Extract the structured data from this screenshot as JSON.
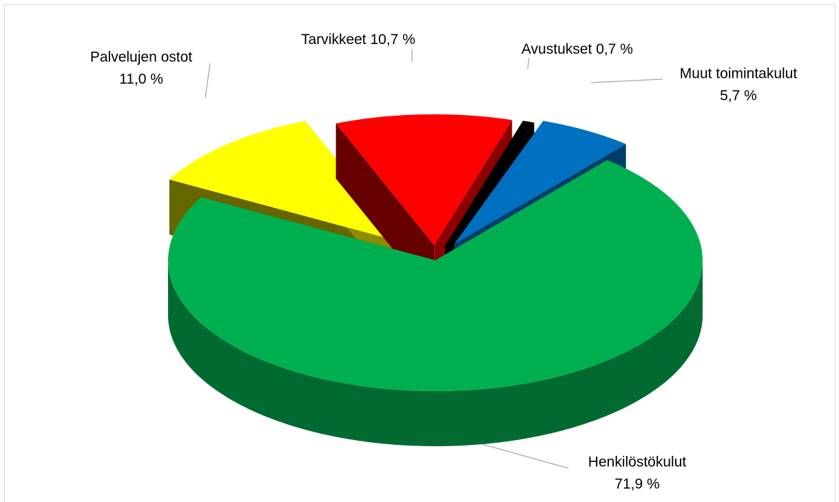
{
  "chart_data": {
    "type": "pie3d",
    "categories": [
      "Henkilöstökulut",
      "Palvelujen ostot",
      "Tarvikkeet",
      "Avustukset",
      "Muut toimintakulut"
    ],
    "values": [
      71.9,
      11.0,
      10.7,
      0.7,
      5.7
    ],
    "value_labels": [
      "71,9 %",
      "11,0 %",
      "10,7 %",
      "0,7 %",
      "5,7 %"
    ],
    "colors": [
      "#00b050",
      "#ffff00",
      "#ff0000",
      "#000000",
      "#0070c0"
    ]
  }
}
